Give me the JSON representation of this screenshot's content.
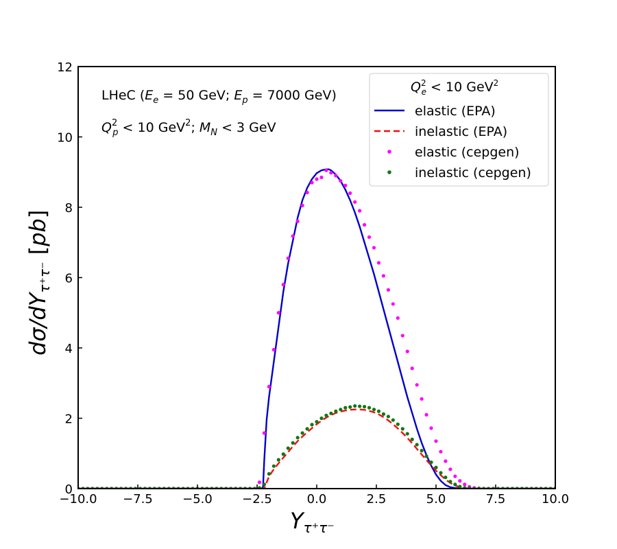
{
  "chart_data": {
    "type": "line",
    "xlabel": "Y_{τ⁺τ⁻}",
    "ylabel": "dσ/dY_{τ⁺τ⁻} [pb]",
    "xlim": [
      -10,
      10
    ],
    "ylim": [
      0,
      12
    ],
    "xticks": [
      -10.0,
      -7.5,
      -5.0,
      -2.5,
      0.0,
      2.5,
      5.0,
      7.5,
      10.0
    ],
    "xtick_labels": [
      "−10.0",
      "−7.5",
      "−5.0",
      "−2.5",
      "0.0",
      "2.5",
      "5.0",
      "7.5",
      "10.0"
    ],
    "yticks": [
      0,
      2,
      4,
      6,
      8,
      10,
      12
    ],
    "ytick_labels": [
      "0",
      "2",
      "4",
      "6",
      "8",
      "10",
      "12"
    ],
    "grid": false,
    "legend_position": "top-right",
    "legend_title": "Q_e² <  10 GeV²",
    "annotations": [
      "LHeC (E_e = 50 GeV; E_p = 7000 GeV)",
      "Q_p² < 10 GeV²; M_N < 3 GeV"
    ],
    "series": [
      {
        "name": "elastic (EPA)",
        "style": "solid-line",
        "color": "#0000cc",
        "x": [
          -10,
          -2.3,
          -2.25,
          -2.2,
          -2.1,
          -2.0,
          -1.8,
          -1.6,
          -1.4,
          -1.2,
          -1.0,
          -0.8,
          -0.6,
          -0.4,
          -0.2,
          0.0,
          0.2,
          0.4,
          0.5,
          0.6,
          0.8,
          1.0,
          1.2,
          1.4,
          1.6,
          1.8,
          2.0,
          2.2,
          2.4,
          2.6,
          2.8,
          3.0,
          3.2,
          3.4,
          3.6,
          3.8,
          4.0,
          4.2,
          4.4,
          4.6,
          4.8,
          5.0,
          5.2,
          5.4,
          5.6,
          5.8,
          6.0,
          6.2,
          6.4,
          6.6,
          6.8,
          7.0,
          10
        ],
        "y": [
          0,
          0,
          0.05,
          0.8,
          1.95,
          2.6,
          3.6,
          4.6,
          5.6,
          6.4,
          7.05,
          7.7,
          8.2,
          8.55,
          8.8,
          8.97,
          9.05,
          9.08,
          9.08,
          9.05,
          8.93,
          8.75,
          8.5,
          8.2,
          7.85,
          7.45,
          7.0,
          6.55,
          6.1,
          5.6,
          5.1,
          4.6,
          4.1,
          3.6,
          3.1,
          2.6,
          2.15,
          1.7,
          1.3,
          0.95,
          0.65,
          0.4,
          0.22,
          0.1,
          0.04,
          0.015,
          0.005,
          0.001,
          0,
          0,
          0,
          0,
          0
        ]
      },
      {
        "name": "inelastic (EPA)",
        "style": "dashed-line",
        "color": "#ee1111",
        "x": [
          -10,
          -2.2,
          -2.0,
          -1.8,
          -1.6,
          -1.4,
          -1.2,
          -1.0,
          -0.8,
          -0.6,
          -0.4,
          -0.2,
          0.0,
          0.2,
          0.4,
          0.6,
          0.8,
          1.0,
          1.2,
          1.4,
          1.6,
          1.8,
          2.0,
          2.2,
          2.4,
          2.6,
          2.8,
          3.0,
          3.2,
          3.4,
          3.6,
          3.8,
          4.0,
          4.2,
          4.4,
          4.6,
          4.8,
          5.0,
          5.2,
          5.4,
          5.6,
          5.8,
          6.0,
          6.2,
          6.4,
          6.6,
          10
        ],
        "y": [
          0,
          0,
          0.35,
          0.55,
          0.72,
          0.88,
          1.04,
          1.2,
          1.35,
          1.48,
          1.6,
          1.72,
          1.83,
          1.93,
          2.02,
          2.09,
          2.15,
          2.19,
          2.22,
          2.24,
          2.25,
          2.25,
          2.24,
          2.21,
          2.17,
          2.11,
          2.03,
          1.94,
          1.83,
          1.71,
          1.58,
          1.44,
          1.29,
          1.13,
          0.97,
          0.81,
          0.66,
          0.51,
          0.38,
          0.26,
          0.16,
          0.09,
          0.04,
          0.015,
          0.004,
          0,
          0
        ]
      },
      {
        "name": "elastic (cepgen)",
        "style": "markers",
        "color": "#ff00ff",
        "x": [
          -10.0,
          -9.8,
          -9.6,
          -9.4,
          -9.2,
          -9.0,
          -8.8,
          -8.6,
          -8.4,
          -8.2,
          -8.0,
          -7.8,
          -7.6,
          -7.4,
          -7.2,
          -7.0,
          -6.8,
          -6.6,
          -6.4,
          -6.2,
          -6.0,
          -5.8,
          -5.6,
          -5.4,
          -5.2,
          -5.0,
          -4.8,
          -4.6,
          -4.4,
          -4.2,
          -4.0,
          -3.8,
          -3.6,
          -3.4,
          -3.2,
          -3.0,
          -2.8,
          -2.6,
          -2.4,
          -2.2,
          -2.0,
          -1.8,
          -1.6,
          -1.4,
          -1.2,
          -1.0,
          -0.8,
          -0.6,
          -0.4,
          -0.2,
          0.0,
          0.2,
          0.4,
          0.6,
          0.8,
          1.0,
          1.2,
          1.4,
          1.6,
          1.8,
          2.0,
          2.2,
          2.4,
          2.6,
          2.8,
          3.0,
          3.2,
          3.4,
          3.6,
          3.8,
          4.0,
          4.2,
          4.4,
          4.6,
          4.8,
          5.0,
          5.2,
          5.4,
          5.6,
          5.8,
          6.0,
          6.2,
          6.4,
          6.6,
          6.8,
          7.0,
          7.2,
          7.4,
          7.6,
          7.8,
          8.0,
          8.2,
          8.4,
          8.6,
          8.8,
          9.0,
          9.2,
          9.4,
          9.6,
          9.8,
          10.0
        ],
        "y": [
          0,
          0,
          0,
          0,
          0,
          0,
          0,
          0,
          0,
          0,
          0,
          0,
          0,
          0,
          0,
          0,
          0,
          0,
          0,
          0,
          0,
          0,
          0,
          0,
          0,
          0,
          0,
          0,
          0,
          0,
          0,
          0,
          0,
          0,
          0,
          0,
          0,
          0,
          0.18,
          1.58,
          2.9,
          3.95,
          5.0,
          5.8,
          6.55,
          7.18,
          7.6,
          8.05,
          8.42,
          8.7,
          8.8,
          8.85,
          9.05,
          8.98,
          8.9,
          8.75,
          8.62,
          8.4,
          8.15,
          7.9,
          7.5,
          7.15,
          6.85,
          6.42,
          6.05,
          5.65,
          5.25,
          4.85,
          4.35,
          3.9,
          3.42,
          2.95,
          2.55,
          2.1,
          1.72,
          1.35,
          1.05,
          0.78,
          0.55,
          0.35,
          0.22,
          0.12,
          0.05,
          0.02,
          0.01,
          0,
          0,
          0,
          0,
          0,
          0,
          0,
          0,
          0,
          0,
          0,
          0,
          0,
          0,
          0,
          0
        ]
      },
      {
        "name": "inelastic (cepgen)",
        "style": "markers",
        "color": "#117711",
        "x": [
          -10.0,
          -9.8,
          -9.6,
          -9.4,
          -9.2,
          -9.0,
          -8.8,
          -8.6,
          -8.4,
          -8.2,
          -8.0,
          -7.8,
          -7.6,
          -7.4,
          -7.2,
          -7.0,
          -6.8,
          -6.6,
          -6.4,
          -6.2,
          -6.0,
          -5.8,
          -5.6,
          -5.4,
          -5.2,
          -5.0,
          -4.8,
          -4.6,
          -4.4,
          -4.2,
          -4.0,
          -3.8,
          -3.6,
          -3.4,
          -3.2,
          -3.0,
          -2.8,
          -2.6,
          -2.4,
          -2.2,
          -2.0,
          -1.8,
          -1.6,
          -1.4,
          -1.2,
          -1.0,
          -0.8,
          -0.6,
          -0.4,
          -0.2,
          0.0,
          0.2,
          0.4,
          0.6,
          0.8,
          1.0,
          1.2,
          1.4,
          1.6,
          1.8,
          2.0,
          2.2,
          2.4,
          2.6,
          2.8,
          3.0,
          3.2,
          3.4,
          3.6,
          3.8,
          4.0,
          4.2,
          4.4,
          4.6,
          4.8,
          5.0,
          5.2,
          5.4,
          5.6,
          5.8,
          6.0,
          6.2,
          6.4,
          6.6,
          6.8,
          7.0,
          7.2,
          7.4,
          7.6,
          7.8,
          8.0,
          8.2,
          8.4,
          8.6,
          8.8,
          9.0,
          9.2,
          9.4,
          9.6,
          9.8,
          10.0
        ],
        "y": [
          0,
          0,
          0,
          0,
          0,
          0,
          0,
          0,
          0,
          0,
          0,
          0,
          0,
          0,
          0,
          0,
          0,
          0,
          0,
          0,
          0,
          0,
          0,
          0,
          0,
          0,
          0,
          0,
          0,
          0,
          0,
          0,
          0,
          0,
          0,
          0,
          0,
          0,
          0.02,
          0.12,
          0.42,
          0.64,
          0.82,
          0.98,
          1.15,
          1.3,
          1.45,
          1.58,
          1.7,
          1.82,
          1.9,
          2.0,
          2.08,
          2.14,
          2.2,
          2.25,
          2.3,
          2.32,
          2.35,
          2.34,
          2.33,
          2.3,
          2.25,
          2.2,
          2.12,
          2.05,
          1.95,
          1.83,
          1.7,
          1.56,
          1.4,
          1.25,
          1.08,
          0.92,
          0.75,
          0.6,
          0.45,
          0.32,
          0.2,
          0.12,
          0.06,
          0.02,
          0.01,
          0,
          0,
          0,
          0,
          0,
          0,
          0,
          0,
          0,
          0,
          0,
          0,
          0,
          0,
          0,
          0,
          0,
          0
        ]
      }
    ]
  }
}
